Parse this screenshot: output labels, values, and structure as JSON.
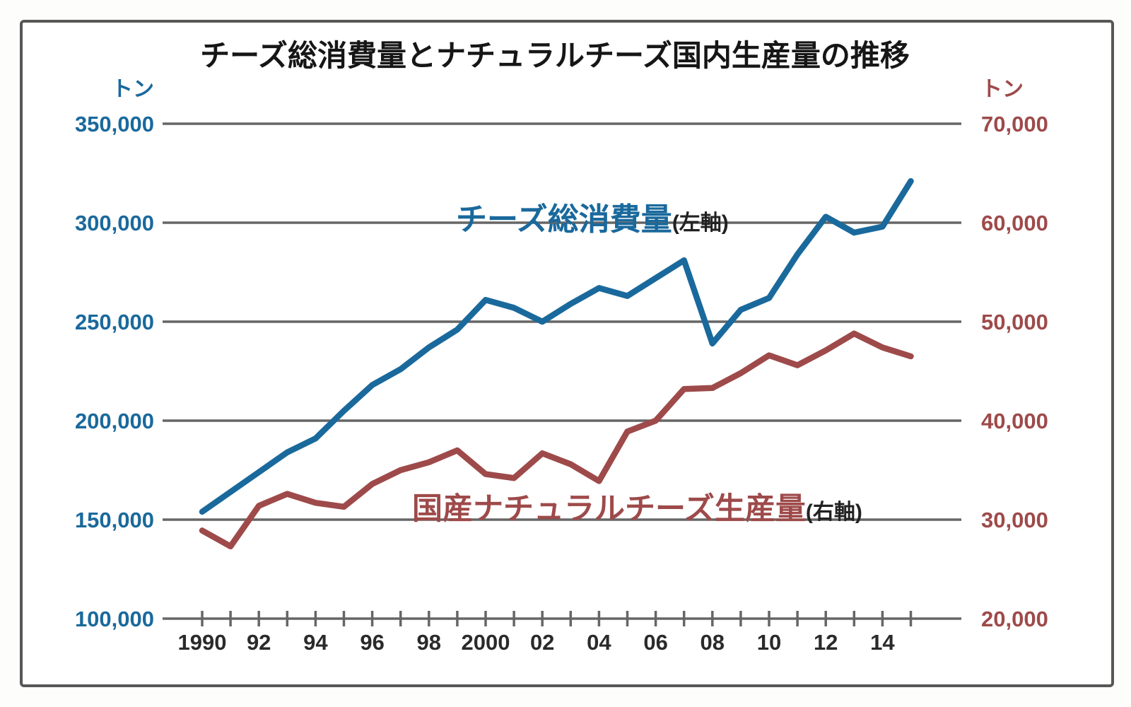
{
  "title": "チーズ総消費量とナチュラルチーズ国内生産量の推移",
  "colors": {
    "consumption_blue": "#1a699c",
    "production_red": "#9e4a4a",
    "gridline_gray": "#666666",
    "text_dark": "#2a2a2a",
    "frame_border": "#575757"
  },
  "left_axis": {
    "unit": "トン",
    "tick_labels": [
      "350,000",
      "300,000",
      "250,000",
      "200,000",
      "150,000",
      "100,000"
    ],
    "tick_values": [
      350000,
      300000,
      250000,
      200000,
      150000,
      100000
    ]
  },
  "right_axis": {
    "unit": "トン",
    "tick_labels": [
      "70,000",
      "60,000",
      "50,000",
      "40,000",
      "30,000",
      "20,000"
    ],
    "tick_values": [
      70000,
      60000,
      50000,
      40000,
      30000,
      20000
    ]
  },
  "x_axis": {
    "tick_years_start": 1990,
    "tick_years_end": 2015,
    "labels": [
      {
        "year": 1990,
        "text": "1990"
      },
      {
        "year": 1992,
        "text": "92"
      },
      {
        "year": 1994,
        "text": "94"
      },
      {
        "year": 1996,
        "text": "96"
      },
      {
        "year": 1998,
        "text": "98"
      },
      {
        "year": 2000,
        "text": "2000"
      },
      {
        "year": 2002,
        "text": "02"
      },
      {
        "year": 2004,
        "text": "04"
      },
      {
        "year": 2006,
        "text": "06"
      },
      {
        "year": 2008,
        "text": "08"
      },
      {
        "year": 2010,
        "text": "10"
      },
      {
        "year": 2012,
        "text": "12"
      },
      {
        "year": 2014,
        "text": "14"
      }
    ]
  },
  "series_labels": {
    "consumption": {
      "name": "チーズ総消費量",
      "note": "(左軸)"
    },
    "production": {
      "name": "国産ナチュラルチーズ生産量",
      "note": "(右軸)"
    }
  },
  "chart_data": {
    "type": "line",
    "x": [
      1990,
      1991,
      1992,
      1993,
      1994,
      1995,
      1996,
      1997,
      1998,
      1999,
      2000,
      2001,
      2002,
      2003,
      2004,
      2005,
      2006,
      2007,
      2008,
      2009,
      2010,
      2011,
      2012,
      2013,
      2014,
      2015
    ],
    "series": [
      {
        "name": "チーズ総消費量",
        "axis": "left",
        "color": "#1a699c",
        "values": [
          154000,
          164000,
          174000,
          184000,
          191000,
          205000,
          218000,
          226000,
          237000,
          246000,
          261000,
          257000,
          250000,
          259000,
          267000,
          263000,
          272000,
          281000,
          239000,
          256000,
          262000,
          284000,
          303000,
          295000,
          298000,
          321000
        ]
      },
      {
        "name": "国産ナチュラルチーズ生産量",
        "axis": "right",
        "color": "#9e4a4a",
        "values": [
          28900,
          27300,
          31400,
          32600,
          31700,
          31300,
          33600,
          35000,
          35800,
          37000,
          34600,
          34200,
          36700,
          35600,
          33900,
          38900,
          40000,
          43200,
          43300,
          44800,
          46600,
          45600,
          47100,
          48800,
          47400,
          46500
        ]
      }
    ],
    "title": "チーズ総消費量とナチュラルチーズ国内生産量の推移",
    "ylabel_left": "トン",
    "ylabel_right": "トン",
    "left_ylim": [
      100000,
      350000
    ],
    "right_ylim": [
      20000,
      70000
    ],
    "grid": "horizontal",
    "legend_position": "inline-annotations"
  }
}
